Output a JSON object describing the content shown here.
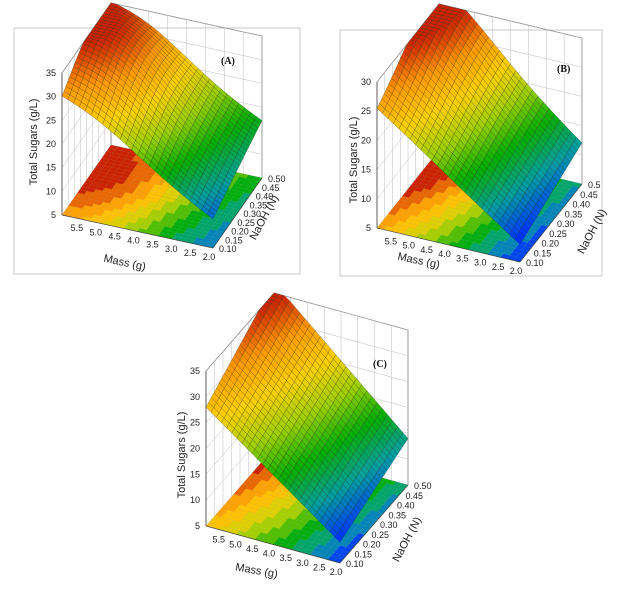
{
  "figure": {
    "panels": [
      "A",
      "B",
      "C"
    ]
  },
  "chart_data": [
    {
      "type": "surface3d",
      "panel_label": "(A)",
      "xlabel": "Mass (g)",
      "ylabel": "NaOH (N)",
      "zlabel": "Total Sugars (g/L)",
      "x_ticks": [
        "5.5",
        "5.0",
        "4.5",
        "4.0",
        "3.5",
        "3.0",
        "2.5",
        "2.0"
      ],
      "y_ticks": [
        "0.10",
        "0.15",
        "0.20",
        "0.25",
        "0.30",
        "0.35",
        "0.40",
        "0.45",
        "0.50"
      ],
      "z_ticks": [
        "5",
        "10",
        "15",
        "20",
        "25",
        "30",
        "35"
      ],
      "xlim": [
        2.0,
        6.0
      ],
      "ylim": [
        0.1,
        0.5
      ],
      "zlim": [
        5,
        35
      ],
      "surface": {
        "x": [
          2.0,
          2.5,
          3.0,
          3.5,
          4.0,
          4.5,
          5.0,
          5.5,
          6.0
        ],
        "y": [
          0.1,
          0.15,
          0.2,
          0.25,
          0.3,
          0.35,
          0.4,
          0.45,
          0.5
        ],
        "z_corners": {
          "x_high_y_low": 28,
          "x_high_y_high": 32,
          "x_low_y_low": 11,
          "x_low_y_high": 17
        },
        "peak": {
          "x": 5.2,
          "y": 0.33,
          "z": 34
        }
      },
      "colormap": [
        "#0000aa",
        "#0033ff",
        "#00a0a0",
        "#00b000",
        "#9fd000",
        "#ffd000",
        "#ff9900",
        "#cc2200"
      ]
    },
    {
      "type": "surface3d",
      "panel_label": "(B)",
      "xlabel": "Mass (g)",
      "ylabel": "NaOH (N)",
      "zlabel": "Total Sugars (g/L)",
      "x_ticks": [
        "5.5",
        "5.0",
        "4.5",
        "4.0",
        "3.5",
        "3.0",
        "2.5",
        "2.0"
      ],
      "y_ticks": [
        "0.10",
        "0.15",
        "0.20",
        "0.25",
        "0.30",
        "0.35",
        "0.40",
        "0.45",
        "0.5"
      ],
      "z_ticks": [
        "5",
        "10",
        "15",
        "20",
        "25",
        "30"
      ],
      "xlim": [
        2.0,
        6.0
      ],
      "ylim": [
        0.1,
        0.5
      ],
      "zlim": [
        5,
        30
      ],
      "surface": {
        "x": [
          2.0,
          2.5,
          3.0,
          3.5,
          4.0,
          4.5,
          5.0,
          5.5,
          6.0
        ],
        "y": [
          0.1,
          0.15,
          0.2,
          0.25,
          0.3,
          0.35,
          0.4,
          0.45,
          0.5
        ],
        "z_corners": {
          "x_high_y_low": 25,
          "x_high_y_high": 31,
          "x_low_y_low": 8,
          "x_low_y_high": 12
        },
        "peak": {
          "x": 5.6,
          "y": 0.42,
          "z": 31
        }
      },
      "colormap": [
        "#0000aa",
        "#0033ff",
        "#00a0a0",
        "#00b000",
        "#9fd000",
        "#ffd000",
        "#ff9900",
        "#cc2200"
      ]
    },
    {
      "type": "surface3d",
      "panel_label": "(C)",
      "xlabel": "Mass (g)",
      "ylabel": "NaOH (N)",
      "zlabel": "Total Sugars (g/L)",
      "x_ticks": [
        "5.5",
        "5.0",
        "4.5",
        "4.0",
        "3.5",
        "3.0",
        "2.5",
        "2.0"
      ],
      "y_ticks": [
        "0.10",
        "0.15",
        "0.20",
        "0.25",
        "0.30",
        "0.35",
        "0.40",
        "0.45",
        "0.50"
      ],
      "z_ticks": [
        "5",
        "10",
        "15",
        "20",
        "25",
        "30",
        "35"
      ],
      "xlim": [
        2.0,
        6.0
      ],
      "ylim": [
        0.1,
        0.5
      ],
      "zlim": [
        5,
        35
      ],
      "surface": {
        "x": [
          2.0,
          2.5,
          3.0,
          3.5,
          4.0,
          4.5,
          5.0,
          5.5,
          6.0
        ],
        "y": [
          0.1,
          0.15,
          0.2,
          0.25,
          0.3,
          0.35,
          0.4,
          0.45,
          0.5
        ],
        "z_corners": {
          "x_high_y_low": 28,
          "x_high_y_high": 37,
          "x_low_y_low": 9,
          "x_low_y_high": 14
        },
        "peak": {
          "x": 6.0,
          "y": 0.5,
          "z": 37
        }
      },
      "colormap": [
        "#0000aa",
        "#0033ff",
        "#00a0a0",
        "#00b000",
        "#9fd000",
        "#ffd000",
        "#ff9900",
        "#cc2200"
      ]
    }
  ]
}
